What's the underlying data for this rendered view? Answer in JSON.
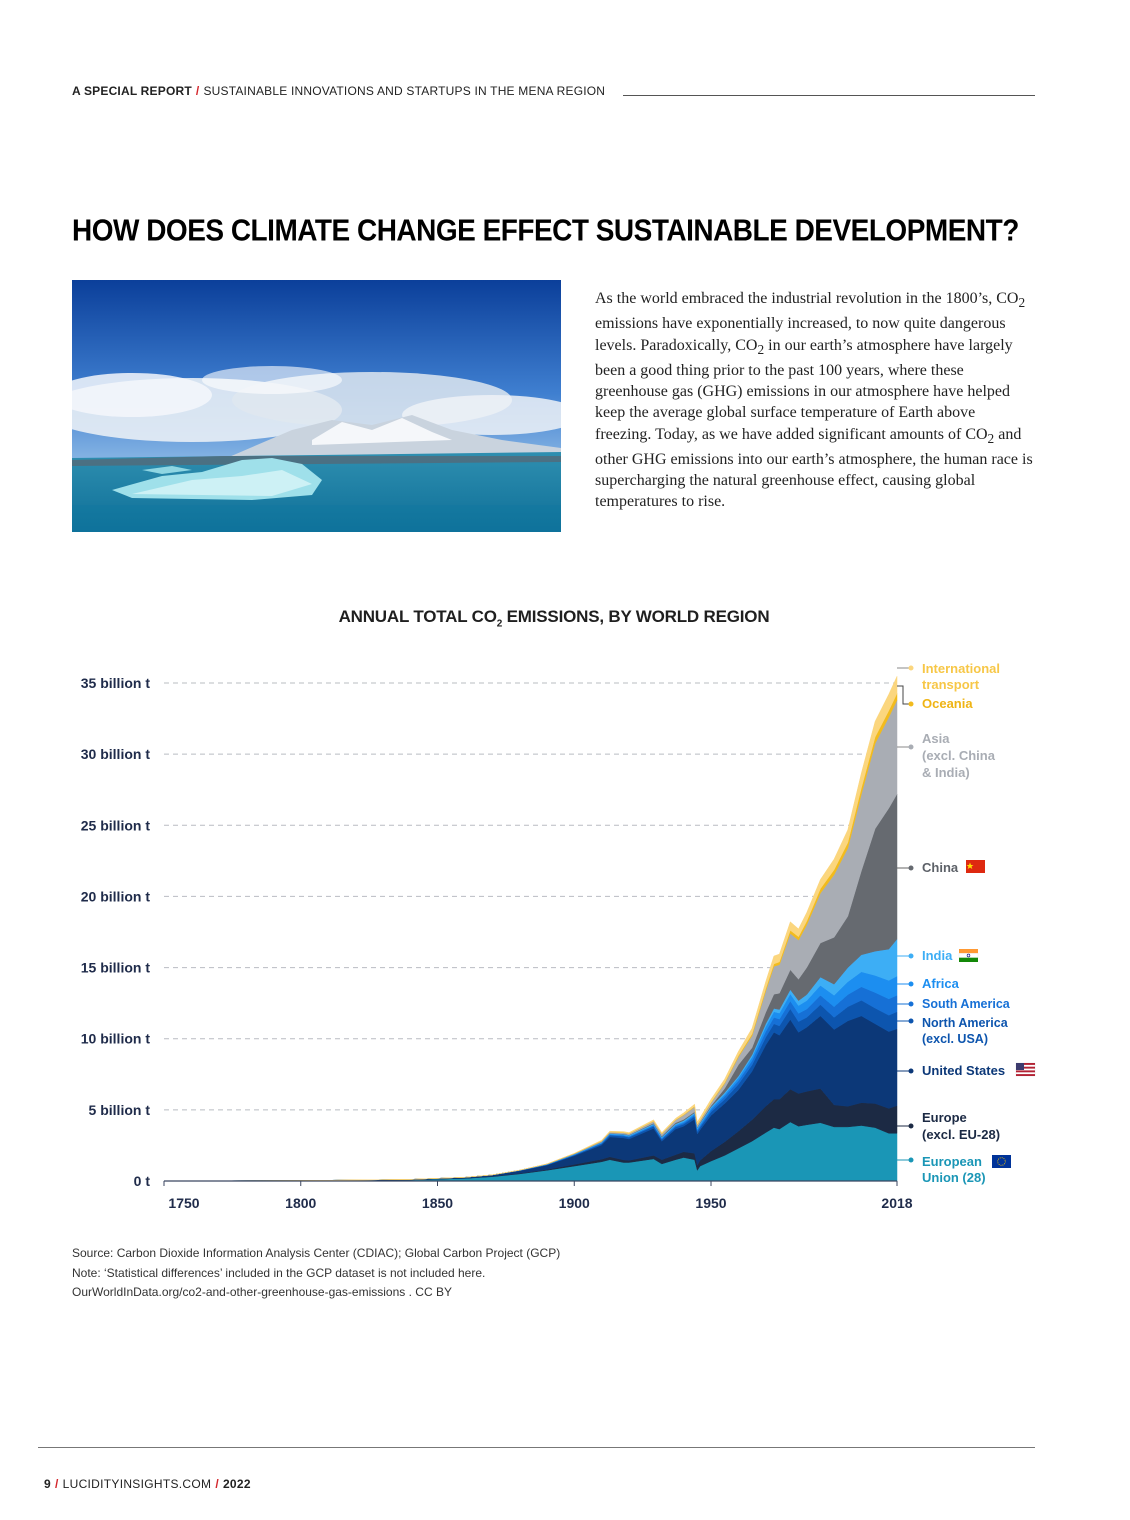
{
  "header": {
    "brand": "A SPECIAL REPORT",
    "subtitle": "SUSTAINABLE INNOVATIONS AND STARTUPS IN THE MENA REGION"
  },
  "title": "HOW DOES CLIMATE CHANGE EFFECT SUSTAINABLE DEVELOPMENT?",
  "body": {
    "seg1": "As the world embraced the industrial revolution in the 1800’s, CO",
    "seg2": " emissions have exponentially increased, to now quite dangerous levels. Paradoxically, CO",
    "seg3": " in our earth’s atmosphere have largely been a good thing prior to the past 100 years, where these greenhouse gas (GHG) emissions in our atmosphere have helped keep the average global surface temperature of Earth above freezing. Today, as we have added significant amounts of CO",
    "seg4": " and other GHG emissions into our earth’s atmosphere, the human race is supercharging the natural greenhouse effect, causing global temperatures to rise.",
    "sub": "2"
  },
  "chart_title": {
    "pre": "ANNUAL TOTAL CO",
    "sub": "2",
    "post": " EMISSIONS, BY WORLD REGION"
  },
  "chart_data": {
    "type": "area",
    "title": "ANNUAL TOTAL CO2 EMISSIONS, BY WORLD REGION",
    "stacked": true,
    "x_ticks": [
      "1750",
      "1800",
      "1850",
      "1900",
      "1950",
      "2018"
    ],
    "y_ticks": [
      "0 t",
      "5 billion t",
      "10 billion t",
      "15 billion t",
      "20 billion t",
      "25 billion t",
      "30 billion t",
      "35 billion t"
    ],
    "ylim": [
      0,
      36.5
    ],
    "xlim": [
      1750,
      2018
    ],
    "grid": "horizontal dashed",
    "legend_placement": "right, inline labels",
    "x": [
      1750,
      1800,
      1840,
      1860,
      1870,
      1880,
      1890,
      1900,
      1910,
      1913,
      1918,
      1920,
      1929,
      1932,
      1937,
      1940,
      1944,
      1945,
      1946,
      1950,
      1955,
      1960,
      1965,
      1970,
      1973,
      1975,
      1979,
      1982,
      1985,
      1990,
      1995,
      2000,
      2005,
      2010,
      2015,
      2018
    ],
    "series": [
      {
        "name": "European Union (28)",
        "color": "#1a96b6",
        "values": [
          0.01,
          0.03,
          0.08,
          0.18,
          0.3,
          0.5,
          0.75,
          1.05,
          1.35,
          1.5,
          1.3,
          1.3,
          1.55,
          1.2,
          1.5,
          1.65,
          1.5,
          0.75,
          1.05,
          1.4,
          1.8,
          2.3,
          2.8,
          3.4,
          3.75,
          3.65,
          4.15,
          3.85,
          3.95,
          4.1,
          3.8,
          3.8,
          3.9,
          3.75,
          3.35,
          3.35
        ]
      },
      {
        "name": "Europe (excl. EU-28)",
        "color": "#1c2a44",
        "values": [
          0,
          0,
          0,
          0.01,
          0.02,
          0.04,
          0.06,
          0.12,
          0.18,
          0.2,
          0.18,
          0.15,
          0.25,
          0.3,
          0.35,
          0.4,
          0.45,
          0.35,
          0.4,
          0.7,
          0.95,
          1.2,
          1.5,
          1.85,
          2.0,
          2.1,
          2.3,
          2.3,
          2.35,
          2.4,
          1.55,
          1.45,
          1.6,
          1.7,
          1.75,
          1.95
        ]
      },
      {
        "name": "United States",
        "color": "#0c3878",
        "values": [
          0,
          0,
          0.03,
          0.07,
          0.1,
          0.18,
          0.3,
          0.6,
          1.0,
          1.4,
          1.55,
          1.5,
          1.9,
          1.3,
          1.8,
          1.8,
          2.4,
          2.2,
          2.15,
          2.5,
          2.7,
          2.9,
          3.4,
          4.3,
          4.7,
          4.5,
          4.9,
          4.3,
          4.5,
          5.1,
          5.3,
          6.0,
          6.1,
          5.6,
          5.4,
          5.4
        ]
      },
      {
        "name": "North America (excl. USA)",
        "color": "#0d55ae",
        "values": [
          0,
          0,
          0,
          0,
          0.01,
          0.02,
          0.03,
          0.05,
          0.09,
          0.11,
          0.12,
          0.12,
          0.14,
          0.12,
          0.14,
          0.15,
          0.18,
          0.18,
          0.18,
          0.25,
          0.3,
          0.4,
          0.45,
          0.55,
          0.6,
          0.65,
          0.75,
          0.75,
          0.7,
          0.8,
          0.85,
          1.0,
          1.1,
          1.1,
          1.15,
          1.2
        ]
      },
      {
        "name": "South America",
        "color": "#1670d6",
        "values": [
          0,
          0,
          0,
          0,
          0,
          0.01,
          0.01,
          0.02,
          0.04,
          0.05,
          0.05,
          0.05,
          0.07,
          0.07,
          0.08,
          0.09,
          0.1,
          0.1,
          0.11,
          0.15,
          0.2,
          0.25,
          0.3,
          0.4,
          0.45,
          0.48,
          0.55,
          0.58,
          0.58,
          0.65,
          0.75,
          0.85,
          0.95,
          1.1,
          1.15,
          1.15
        ]
      },
      {
        "name": "Africa",
        "color": "#1c8ef0",
        "values": [
          0,
          0,
          0,
          0,
          0,
          0,
          0.01,
          0.02,
          0.03,
          0.04,
          0.04,
          0.04,
          0.05,
          0.05,
          0.07,
          0.08,
          0.09,
          0.09,
          0.1,
          0.12,
          0.15,
          0.2,
          0.25,
          0.35,
          0.4,
          0.42,
          0.5,
          0.55,
          0.6,
          0.7,
          0.8,
          0.9,
          1.05,
          1.2,
          1.3,
          1.35
        ]
      },
      {
        "name": "India",
        "color": "#3daef5",
        "values": [
          0,
          0,
          0,
          0,
          0,
          0.01,
          0.02,
          0.03,
          0.04,
          0.04,
          0.05,
          0.05,
          0.06,
          0.06,
          0.07,
          0.08,
          0.08,
          0.08,
          0.08,
          0.09,
          0.11,
          0.12,
          0.16,
          0.2,
          0.23,
          0.25,
          0.3,
          0.35,
          0.42,
          0.58,
          0.78,
          1.0,
          1.2,
          1.7,
          2.2,
          2.6
        ]
      },
      {
        "name": "China",
        "color": "#666a70",
        "values": [
          0,
          0,
          0,
          0,
          0,
          0,
          0,
          0.01,
          0.02,
          0.02,
          0.03,
          0.03,
          0.05,
          0.06,
          0.08,
          0.08,
          0.06,
          0.05,
          0.05,
          0.08,
          0.3,
          0.8,
          0.5,
          0.8,
          1.0,
          1.15,
          1.4,
          1.5,
          1.9,
          2.4,
          3.3,
          3.6,
          5.9,
          8.6,
          9.9,
          10.2
        ]
      },
      {
        "name": "Asia (excl. China & India)",
        "color": "#a9adb4",
        "values": [
          0,
          0,
          0,
          0,
          0,
          0,
          0.01,
          0.02,
          0.05,
          0.06,
          0.07,
          0.08,
          0.12,
          0.14,
          0.18,
          0.3,
          0.35,
          0.15,
          0.12,
          0.2,
          0.35,
          0.55,
          0.85,
          1.5,
          1.95,
          2.0,
          2.55,
          2.75,
          3.0,
          3.5,
          4.4,
          4.8,
          5.4,
          6.0,
          6.4,
          6.6
        ]
      },
      {
        "name": "Oceania",
        "color": "#f2bb1d",
        "values": [
          0,
          0,
          0,
          0,
          0,
          0,
          0.01,
          0.01,
          0.02,
          0.02,
          0.02,
          0.02,
          0.03,
          0.03,
          0.03,
          0.04,
          0.04,
          0.04,
          0.04,
          0.05,
          0.06,
          0.09,
          0.12,
          0.16,
          0.18,
          0.2,
          0.22,
          0.24,
          0.26,
          0.31,
          0.34,
          0.38,
          0.43,
          0.45,
          0.46,
          0.47
        ]
      },
      {
        "name": "International transport",
        "color": "#fbd67e",
        "values": [
          0,
          0,
          0,
          0,
          0,
          0,
          0,
          0.02,
          0.05,
          0.06,
          0.06,
          0.06,
          0.08,
          0.08,
          0.1,
          0.12,
          0.15,
          0.16,
          0.18,
          0.2,
          0.25,
          0.3,
          0.4,
          0.5,
          0.55,
          0.55,
          0.6,
          0.55,
          0.6,
          0.65,
          0.75,
          0.9,
          1.05,
          1.1,
          1.15,
          1.2
        ]
      }
    ]
  },
  "legend": {
    "intl1": "International",
    "intl2": "transport",
    "oceania": "Oceania",
    "asia1": "Asia",
    "asia2": "(excl. China",
    "asia3": "& India)",
    "china": "China",
    "india": "India",
    "africa": "Africa",
    "sam": "South America",
    "nam1": "North America",
    "nam2": "(excl. USA)",
    "us": "United States",
    "eur1": "Europe",
    "eur2": "(excl. EU-28)",
    "eu1": "European",
    "eu2": "Union (28)"
  },
  "footnotes": {
    "source": "Source: Carbon Dioxide Information Analysis Center (CDIAC); Global Carbon Project (GCP)",
    "note": "Note: ‘Statistical differences’ included in the GCP dataset is not included here.",
    "url": "OurWorldInData.org/co2-and-other-greenhouse-gas-emissions . CC BY"
  },
  "footer": {
    "page": "9",
    "site": "LUCIDITYINSIGHTS.COM",
    "year": "2022"
  }
}
